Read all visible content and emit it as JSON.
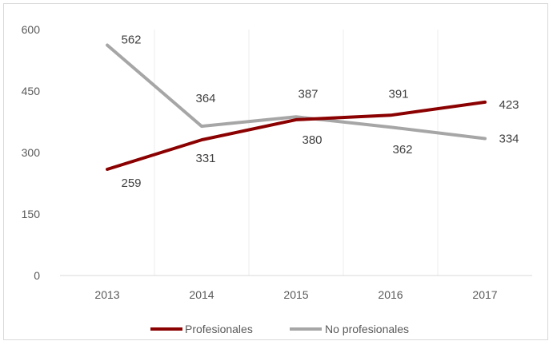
{
  "chart_data": {
    "type": "line",
    "categories": [
      "2013",
      "2014",
      "2015",
      "2016",
      "2017"
    ],
    "series": [
      {
        "name": "Profesionales",
        "values": [
          259,
          331,
          380,
          391,
          423
        ],
        "color": "#8B0000"
      },
      {
        "name": "No profesionales",
        "values": [
          562,
          364,
          387,
          362,
          334
        ],
        "color": "#A6A6A6"
      }
    ],
    "yticks": [
      "0",
      "150",
      "300",
      "450",
      "600"
    ],
    "ylim": [
      0,
      600
    ],
    "grid": "vertical",
    "legend": "bottom"
  }
}
